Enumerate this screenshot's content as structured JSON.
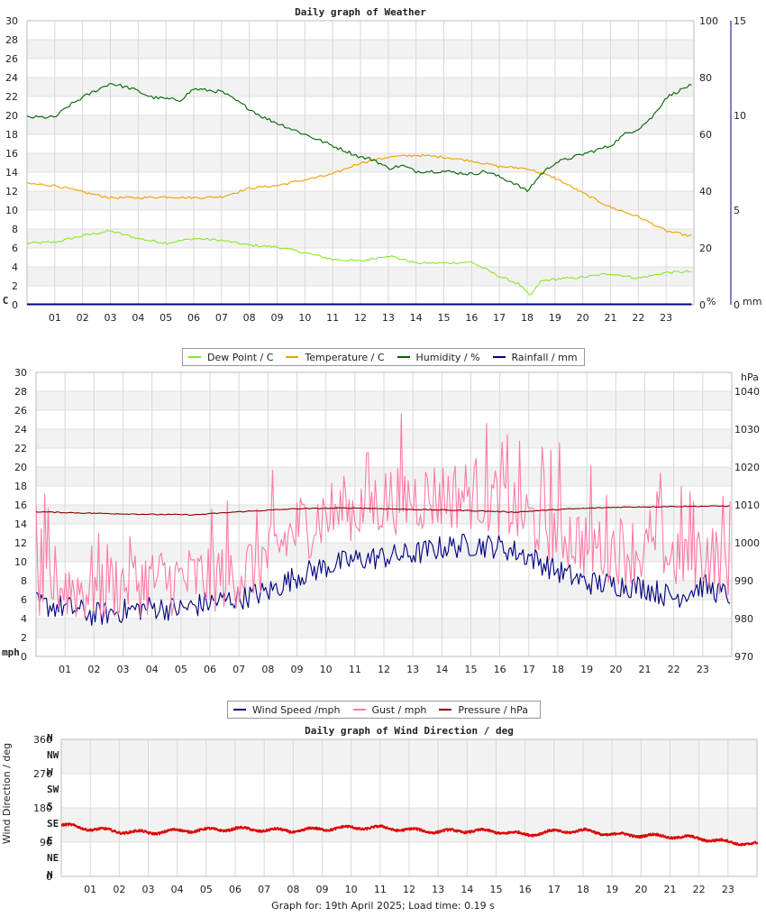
{
  "footer": "Graph for: 19th April 2025; Load time: 0.19 s",
  "chart_data": [
    {
      "type": "line",
      "title": "Daily graph of Weather",
      "x_ticks": [
        "01",
        "02",
        "03",
        "04",
        "05",
        "06",
        "07",
        "08",
        "09",
        "10",
        "11",
        "12",
        "13",
        "14",
        "15",
        "16",
        "17",
        "18",
        "19",
        "20",
        "21",
        "22",
        "23"
      ],
      "y_left": {
        "unit_label": "C",
        "ticks": [
          "0",
          "2",
          "4",
          "6",
          "8",
          "10",
          "12",
          "14",
          "16",
          "18",
          "20",
          "22",
          "24",
          "26",
          "28",
          "30"
        ],
        "range": [
          0,
          30
        ],
        "color": "#e0a000"
      },
      "y_right1": {
        "unit_label": "%",
        "ticks": [
          "0",
          "20",
          "40",
          "60",
          "80",
          "100"
        ],
        "range": [
          0,
          100
        ],
        "color": "#006400"
      },
      "y_right2": {
        "unit_label": "mm",
        "ticks": [
          "0",
          "5",
          "10",
          "15"
        ],
        "range": [
          0,
          15
        ],
        "color": "#00008b"
      },
      "grid": true,
      "legend_position": "bottom",
      "series": [
        {
          "name": "Dew Point / C",
          "color": "#88e82a",
          "axis": "left",
          "points": [
            [
              0,
              6.5
            ],
            [
              1,
              6.6
            ],
            [
              2,
              7.3
            ],
            [
              3,
              7.8
            ],
            [
              4,
              7.0
            ],
            [
              5,
              6.5
            ],
            [
              6,
              7.0
            ],
            [
              7,
              6.8
            ],
            [
              8,
              6.3
            ],
            [
              9,
              6.1
            ],
            [
              10,
              5.5
            ],
            [
              11,
              4.8
            ],
            [
              12,
              4.6
            ],
            [
              13,
              5.2
            ],
            [
              14,
              4.4
            ],
            [
              15,
              4.4
            ],
            [
              16,
              4.5
            ],
            [
              17,
              3.0
            ],
            [
              17.7,
              2.2
            ],
            [
              18.1,
              0.9
            ],
            [
              18.5,
              2.5
            ],
            [
              19,
              2.7
            ],
            [
              20,
              2.9
            ],
            [
              21,
              3.3
            ],
            [
              22,
              2.8
            ],
            [
              23,
              3.4
            ],
            [
              23.8,
              3.5
            ]
          ]
        },
        {
          "name": "Temperature / C",
          "color": "#f0a000",
          "axis": "left",
          "points": [
            [
              0,
              12.8
            ],
            [
              1,
              12.6
            ],
            [
              2,
              11.9
            ],
            [
              3,
              11.3
            ],
            [
              4,
              11.3
            ],
            [
              5,
              11.4
            ],
            [
              6,
              11.3
            ],
            [
              7,
              11.4
            ],
            [
              8,
              12.3
            ],
            [
              9,
              12.6
            ],
            [
              10,
              13.2
            ],
            [
              11,
              13.8
            ],
            [
              12,
              15.0
            ],
            [
              13,
              15.6
            ],
            [
              14,
              15.8
            ],
            [
              15,
              15.6
            ],
            [
              16,
              15.2
            ],
            [
              17,
              14.6
            ],
            [
              18,
              14.4
            ],
            [
              19,
              13.4
            ],
            [
              20,
              11.8
            ],
            [
              21,
              10.3
            ],
            [
              22,
              9.3
            ],
            [
              23,
              7.8
            ],
            [
              23.8,
              7.3
            ]
          ]
        },
        {
          "name": "Humidity / %",
          "color": "#006400",
          "axis": "right1",
          "points": [
            [
              0,
              66
            ],
            [
              1,
              66
            ],
            [
              1.5,
              70
            ],
            [
              2,
              73
            ],
            [
              3,
              78
            ],
            [
              3.8,
              76
            ],
            [
              4.5,
              73
            ],
            [
              5.5,
              72
            ],
            [
              6,
              76
            ],
            [
              7,
              75
            ],
            [
              7.5,
              72
            ],
            [
              8.5,
              66
            ],
            [
              9,
              64
            ],
            [
              9.5,
              62
            ],
            [
              10,
              60
            ],
            [
              11,
              56
            ],
            [
              12,
              52
            ],
            [
              12.5,
              51
            ],
            [
              13,
              48
            ],
            [
              13.5,
              49
            ],
            [
              14,
              47
            ],
            [
              15,
              47
            ],
            [
              16,
              46
            ],
            [
              16.5,
              47
            ],
            [
              17,
              45
            ],
            [
              17.5,
              43
            ],
            [
              18,
              40
            ],
            [
              18.5,
              46
            ],
            [
              19,
              50
            ],
            [
              20,
              53
            ],
            [
              21,
              56
            ],
            [
              21.5,
              60
            ],
            [
              22,
              62
            ],
            [
              22.5,
              66
            ],
            [
              23,
              73
            ],
            [
              23.8,
              77
            ]
          ]
        },
        {
          "name": "Rainfall / mm",
          "color": "#00008b",
          "axis": "right2",
          "points": [
            [
              0,
              0
            ],
            [
              23.8,
              0
            ]
          ]
        }
      ]
    },
    {
      "type": "line",
      "title": "",
      "x_ticks": [
        "01",
        "02",
        "03",
        "04",
        "05",
        "06",
        "07",
        "08",
        "09",
        "10",
        "11",
        "12",
        "13",
        "14",
        "15",
        "16",
        "17",
        "18",
        "19",
        "20",
        "21",
        "22",
        "23"
      ],
      "y_left": {
        "unit_label": "mph",
        "ticks": [
          "0",
          "2",
          "4",
          "6",
          "8",
          "10",
          "12",
          "14",
          "16",
          "18",
          "20",
          "22",
          "24",
          "26",
          "28",
          "30"
        ],
        "range": [
          0,
          30
        ],
        "color": "#00008b"
      },
      "y_right": {
        "unit_label": "hPa",
        "ticks": [
          "970",
          "980",
          "990",
          "1000",
          "1010",
          "1020",
          "1030",
          "1040"
        ],
        "range": [
          970,
          1045
        ],
        "color": "#8b0000"
      },
      "grid": true,
      "legend_position": "bottom",
      "series": [
        {
          "name": "Wind Speed /mph",
          "color": "#000080",
          "axis": "left",
          "points": [
            [
              0,
              5.5
            ],
            [
              1,
              5.2
            ],
            [
              2,
              4.4
            ],
            [
              3,
              4.8
            ],
            [
              4,
              5.2
            ],
            [
              5,
              5.0
            ],
            [
              6,
              5.7
            ],
            [
              7,
              6.2
            ],
            [
              8,
              6.8
            ],
            [
              9,
              8.5
            ],
            [
              10,
              9.5
            ],
            [
              11,
              10.2
            ],
            [
              12,
              10.5
            ],
            [
              13,
              10.8
            ],
            [
              14,
              11.5
            ],
            [
              15,
              11.8
            ],
            [
              16,
              11.6
            ],
            [
              17,
              10.6
            ],
            [
              18,
              9.0
            ],
            [
              19,
              7.8
            ],
            [
              20,
              7.6
            ],
            [
              21,
              7.3
            ],
            [
              22,
              6.2
            ],
            [
              23,
              7.5
            ],
            [
              23.8,
              6.5
            ]
          ],
          "variability": 1.3
        },
        {
          "name": "Gust / mph",
          "color": "#ff7aa8",
          "axis": "left",
          "points": [
            [
              0,
              7.5
            ],
            [
              1,
              7.5
            ],
            [
              2,
              7.0
            ],
            [
              3,
              7.8
            ],
            [
              4,
              8.0
            ],
            [
              5,
              8.0
            ],
            [
              6,
              8.3
            ],
            [
              7,
              8.8
            ],
            [
              8,
              10.5
            ],
            [
              9,
              13.5
            ],
            [
              10,
              15.0
            ],
            [
              11,
              15.5
            ],
            [
              12,
              16.5
            ],
            [
              13,
              16.8
            ],
            [
              14,
              17.0
            ],
            [
              15,
              17.2
            ],
            [
              16,
              16.5
            ],
            [
              17,
              14.5
            ],
            [
              18,
              13.5
            ],
            [
              19,
              11.8
            ],
            [
              20,
              11.5
            ],
            [
              21,
              11.0
            ],
            [
              22,
              10.5
            ],
            [
              23,
              11.0
            ],
            [
              23.8,
              10.0
            ]
          ],
          "variability": 3.8
        },
        {
          "name": "Pressure / hPa",
          "color": "#8b0000",
          "axis": "right",
          "points": [
            [
              0,
              1008.2
            ],
            [
              2,
              1007.8
            ],
            [
              4,
              1007.5
            ],
            [
              5.5,
              1007.4
            ],
            [
              7,
              1008.2
            ],
            [
              9,
              1009.0
            ],
            [
              11,
              1009.2
            ],
            [
              13,
              1008.8
            ],
            [
              15,
              1008.5
            ],
            [
              16.5,
              1008.1
            ],
            [
              18,
              1008.8
            ],
            [
              20,
              1009.4
            ],
            [
              22,
              1009.6
            ],
            [
              23.8,
              1009.7
            ]
          ]
        }
      ]
    },
    {
      "type": "scatter",
      "title": "Daily graph of Wind Direction / deg",
      "x_ticks": [
        "01",
        "02",
        "03",
        "04",
        "05",
        "06",
        "07",
        "08",
        "09",
        "10",
        "11",
        "12",
        "13",
        "14",
        "15",
        "16",
        "17",
        "18",
        "19",
        "20",
        "21",
        "22",
        "23"
      ],
      "y_left": {
        "unit_label": "Wind Direction / deg",
        "ticks": [
          "0",
          "90",
          "180",
          "270",
          "360"
        ],
        "range": [
          0,
          360
        ],
        "color": "#cc0000"
      },
      "compass_labels": [
        "N",
        "NE",
        "E",
        "SE",
        "S",
        "SW",
        "W",
        "NW",
        "N"
      ],
      "grid": true,
      "series": [
        {
          "name": "Wind Direction",
          "color": "#dd0000",
          "points": [
            [
              0,
              135
            ],
            [
              1,
              125
            ],
            [
              2,
              118
            ],
            [
              3,
              115
            ],
            [
              4,
              120
            ],
            [
              5,
              122
            ],
            [
              6,
              125
            ],
            [
              7,
              122
            ],
            [
              8,
              120
            ],
            [
              9,
              125
            ],
            [
              10,
              128
            ],
            [
              11,
              128
            ],
            [
              12,
              122
            ],
            [
              13,
              118
            ],
            [
              14,
              120
            ],
            [
              15,
              118
            ],
            [
              16,
              110
            ],
            [
              17,
              118
            ],
            [
              18,
              120
            ],
            [
              19,
              110
            ],
            [
              20,
              108
            ],
            [
              21,
              105
            ],
            [
              22,
              100
            ],
            [
              23,
              90
            ],
            [
              23.8,
              85
            ]
          ],
          "variability": 7
        }
      ]
    }
  ]
}
